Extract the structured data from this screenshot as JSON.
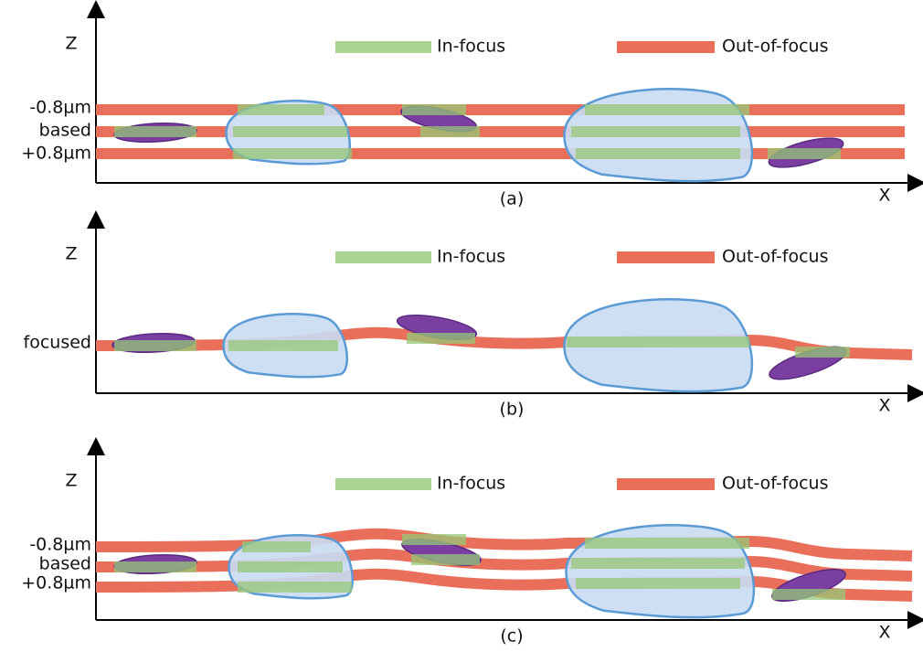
{
  "panels": [
    {
      "z_label": "Z",
      "x_label": "X",
      "caption": "(a)",
      "legend": [
        "In-focus",
        "Out-of-focus"
      ],
      "level_labels": [
        "-0.8µm",
        "based",
        "+0.8µm"
      ]
    },
    {
      "z_label": "Z",
      "x_label": "X",
      "caption": "(b)",
      "legend": [
        "In-focus",
        "Out-of-focus"
      ],
      "level_labels": [
        "focused"
      ]
    },
    {
      "z_label": "Z",
      "x_label": "X",
      "caption": "(c)",
      "legend": [
        "In-focus",
        "Out-of-focus"
      ],
      "level_labels": [
        "-0.8µm",
        "based",
        "+0.8µm"
      ]
    }
  ]
}
